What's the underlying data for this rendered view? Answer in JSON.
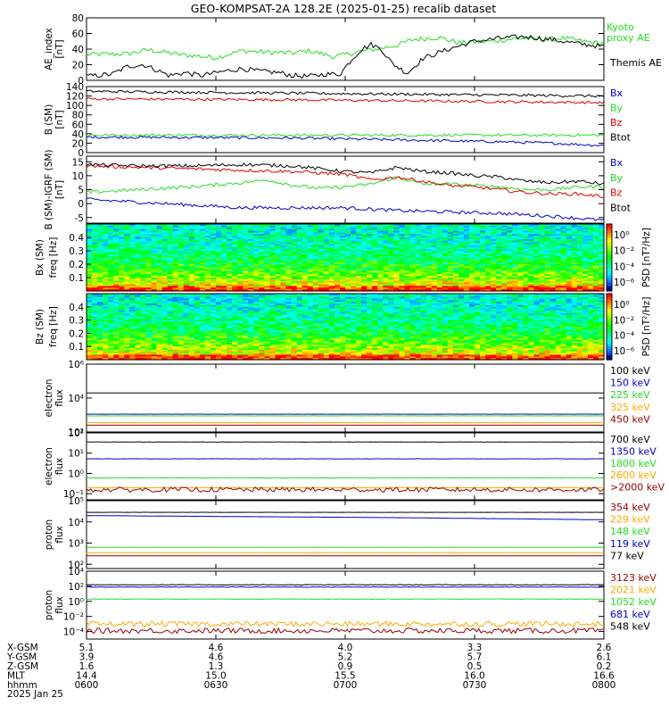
{
  "title": "GEO-KOMPSAT-2A 128.2E (2025-01-25) recalib dataset",
  "colors": {
    "black": "#000000",
    "red": "#e00000",
    "green": "#22dd22",
    "blue": "#0000c8",
    "orange": "#ffaa00",
    "maroon": "#990000"
  },
  "chart_data": [
    {
      "type": "line",
      "ylabel": [
        "AE_index",
        "[nT]"
      ],
      "ylim": [
        0,
        80
      ],
      "yticks": [
        "0",
        "20",
        "40",
        "60",
        "80"
      ],
      "series": [
        {
          "name": "Kyoto proxy AE",
          "color": "green",
          "x": [
            0,
            0.08,
            0.12,
            0.18,
            0.25,
            0.3,
            0.35,
            0.4,
            0.43,
            0.48,
            0.52,
            0.56,
            0.6,
            0.63,
            0.68,
            0.72,
            0.78,
            0.84,
            0.88,
            0.92,
            0.96,
            1.0
          ],
          "y": [
            33,
            34,
            39,
            33,
            29,
            38,
            36,
            35,
            38,
            30,
            36,
            40,
            45,
            52,
            55,
            48,
            50,
            54,
            52,
            54,
            50,
            47
          ]
        },
        {
          "name": "Themis AE",
          "color": "black",
          "x": [
            0,
            0.05,
            0.08,
            0.11,
            0.14,
            0.16,
            0.19,
            0.22,
            0.27,
            0.3,
            0.33,
            0.37,
            0.4,
            0.43,
            0.46,
            0.49,
            0.51,
            0.53,
            0.55,
            0.57,
            0.59,
            0.62,
            0.65,
            0.7,
            0.75,
            0.8,
            0.85,
            0.9,
            0.95,
            1.0
          ],
          "y": [
            5,
            8,
            18,
            20,
            12,
            6,
            10,
            6,
            12,
            15,
            12,
            10,
            6,
            5,
            8,
            8,
            25,
            39,
            46,
            40,
            22,
            9,
            28,
            40,
            50,
            54,
            56,
            52,
            47,
            43
          ]
        }
      ]
    },
    {
      "type": "line",
      "ylabel": [
        "B (SM)",
        "[nT]"
      ],
      "ylim": [
        0,
        140
      ],
      "yticks": [
        "0",
        "20",
        "40",
        "60",
        "80",
        "100",
        "120",
        "140"
      ],
      "series": [
        {
          "name": "Bx",
          "color": "blue",
          "x": [
            0,
            0.2,
            0.4,
            0.5,
            0.6,
            0.7,
            0.8,
            0.9,
            1.0
          ],
          "y": [
            33,
            32,
            31,
            29,
            27,
            25,
            23,
            20,
            15
          ]
        },
        {
          "name": "By",
          "color": "green",
          "x": [
            0,
            0.2,
            0.4,
            0.6,
            0.8,
            1.0
          ],
          "y": [
            37,
            37,
            37,
            37,
            37,
            37
          ]
        },
        {
          "name": "Bz",
          "color": "red",
          "x": [
            0,
            0.2,
            0.4,
            0.6,
            0.8,
            1.0
          ],
          "y": [
            114,
            113,
            112,
            110,
            108,
            106
          ]
        },
        {
          "name": "Btot",
          "color": "black",
          "x": [
            0,
            0.2,
            0.4,
            0.6,
            0.8,
            1.0
          ],
          "y": [
            130,
            128,
            126,
            124,
            122,
            120
          ]
        }
      ]
    },
    {
      "type": "line",
      "ylabel": [
        "B (SM)-IGRF (SM)",
        "[nT]"
      ],
      "ylim": [
        -7,
        17
      ],
      "yticks": [
        "-5",
        "0",
        "5",
        "10",
        "15"
      ],
      "series": [
        {
          "name": "Bx",
          "color": "blue",
          "x": [
            0,
            0.1,
            0.2,
            0.3,
            0.4,
            0.5,
            0.6,
            0.7,
            0.8,
            0.9,
            1.0
          ],
          "y": [
            1.5,
            0.5,
            -0.5,
            -1.5,
            -1.5,
            -1.5,
            -2.5,
            -3.0,
            -3.5,
            -4.5,
            -6.0
          ]
        },
        {
          "name": "By",
          "color": "green",
          "x": [
            0,
            0.1,
            0.2,
            0.3,
            0.35,
            0.4,
            0.45,
            0.5,
            0.55,
            0.6,
            0.65,
            0.7,
            0.75,
            0.8,
            0.85,
            0.9,
            0.95,
            1.0
          ],
          "y": [
            4.0,
            5.0,
            6.0,
            7.5,
            8.5,
            6.5,
            5.5,
            6.0,
            7.0,
            9.5,
            7.0,
            7.0,
            6.5,
            6.0,
            5.0,
            5.0,
            6.0,
            6.0
          ]
        },
        {
          "name": "Bz",
          "color": "red",
          "x": [
            0,
            0.1,
            0.2,
            0.3,
            0.4,
            0.5,
            0.55,
            0.6,
            0.65,
            0.7,
            0.75,
            0.8,
            0.85,
            0.9,
            0.95,
            1.0
          ],
          "y": [
            13.5,
            13.0,
            12.5,
            12.0,
            11.5,
            10.5,
            8.5,
            9.5,
            8.0,
            6.5,
            6.0,
            5.0,
            4.0,
            3.5,
            3.5,
            2.5
          ]
        },
        {
          "name": "Btot",
          "color": "black",
          "x": [
            0,
            0.1,
            0.2,
            0.3,
            0.4,
            0.5,
            0.55,
            0.6,
            0.65,
            0.7,
            0.75,
            0.8,
            0.85,
            0.9,
            0.95,
            1.0
          ],
          "y": [
            14.0,
            13.5,
            13.5,
            14.0,
            13.5,
            11.5,
            11.0,
            13.0,
            11.5,
            11.0,
            10.0,
            9.5,
            8.0,
            7.5,
            8.0,
            7.0
          ]
        }
      ]
    },
    {
      "type": "heatmap",
      "ylabel": [
        "Bx (SM)",
        "freq [Hz]"
      ],
      "ylim": [
        0.0,
        0.5
      ],
      "yticks": [
        "0.1",
        "0.2",
        "0.3",
        "0.4"
      ],
      "colorbar": {
        "label": "PSD [nT²/Hz]",
        "ticks": [
          "10⁰",
          "10⁻²",
          "10⁻⁴",
          "10⁻⁶"
        ],
        "range_exp": [
          -6,
          1
        ]
      }
    },
    {
      "type": "heatmap",
      "ylabel": [
        "Bz (SM)",
        "freq [Hz]"
      ],
      "ylim": [
        0.0,
        0.5
      ],
      "yticks": [
        "0.1",
        "0.2",
        "0.3",
        "0.4"
      ],
      "colorbar": {
        "label": "PSD [nT²/Hz]",
        "ticks": [
          "10⁰",
          "10⁻²",
          "10⁻⁴",
          "10⁻⁶"
        ],
        "range_exp": [
          -6,
          1
        ]
      }
    },
    {
      "type": "line",
      "ylabel": [
        "electron",
        "flux"
      ],
      "yscale": "log",
      "ylim_exp": [
        2,
        6
      ],
      "yticks": [
        "10²",
        "10⁴",
        "10⁶"
      ],
      "series": [
        {
          "name": "100 keV",
          "color": "black",
          "x": [
            0,
            1
          ],
          "y_exp": [
            4.3,
            4.3
          ]
        },
        {
          "name": "150 keV",
          "color": "blue",
          "x": [
            0,
            1
          ],
          "y_exp": [
            3.05,
            3.05
          ]
        },
        {
          "name": "225 keV",
          "color": "green",
          "x": [
            0,
            1
          ],
          "y_exp": [
            2.95,
            2.95
          ]
        },
        {
          "name": "325 keV",
          "color": "orange",
          "x": [
            0,
            1
          ],
          "y_exp": [
            2.55,
            2.55
          ]
        },
        {
          "name": "450 keV",
          "color": "maroon",
          "x": [
            0,
            1
          ],
          "y_exp": [
            2.4,
            2.4
          ]
        }
      ]
    },
    {
      "type": "line",
      "ylabel": [
        "electron",
        "flux"
      ],
      "yscale": "log",
      "ylim_exp": [
        -1.3,
        2
      ],
      "yticks": [
        "10²",
        "10¹",
        "10⁰",
        "10⁻¹"
      ],
      "series": [
        {
          "name": "700 keV",
          "color": "black",
          "x": [
            0,
            1
          ],
          "y_exp": [
            1.55,
            1.55
          ]
        },
        {
          "name": "1350 keV",
          "color": "blue",
          "x": [
            0,
            1
          ],
          "y_exp": [
            0.72,
            0.72
          ]
        },
        {
          "name": "1800 keV",
          "color": "green",
          "x": [
            0,
            1
          ],
          "y_exp": [
            -0.22,
            -0.22
          ]
        },
        {
          "name": "2600 keV",
          "color": "orange",
          "x": [
            0,
            1
          ],
          "y_exp": [
            -0.7,
            -0.7
          ]
        },
        {
          "name": ">2000 keV",
          "color": "maroon",
          "x": [
            0,
            1
          ],
          "y_exp": [
            -0.8,
            -0.8
          ]
        }
      ]
    },
    {
      "type": "line",
      "ylabel": [
        "proton",
        "flux"
      ],
      "yscale": "log",
      "ylim_exp": [
        1.8,
        5
      ],
      "yticks": [
        "10⁵",
        "10⁴",
        "10³",
        "10²"
      ],
      "series": [
        {
          "name": "354 keV",
          "color": "maroon",
          "x": [
            0,
            1
          ],
          "y_exp": [
            2.4,
            2.4
          ]
        },
        {
          "name": "229 keV",
          "color": "orange",
          "x": [
            0,
            1
          ],
          "y_exp": [
            2.55,
            2.55
          ]
        },
        {
          "name": "148 keV",
          "color": "green",
          "x": [
            0,
            1
          ],
          "y_exp": [
            2.8,
            2.8
          ]
        },
        {
          "name": "119 keV",
          "color": "blue",
          "x": [
            0,
            0.6,
            1
          ],
          "y_exp": [
            4.3,
            4.2,
            4.1
          ]
        },
        {
          "name": "77 keV",
          "color": "black",
          "x": [
            0,
            1
          ],
          "y_exp": [
            4.45,
            4.45
          ]
        }
      ]
    },
    {
      "type": "line",
      "ylabel": [
        "proton",
        "flux"
      ],
      "yscale": "log",
      "ylim_exp": [
        -5,
        4
      ],
      "yticks": [
        "10⁴",
        "10²",
        "10⁰",
        "10⁻²",
        "10⁻⁴"
      ],
      "series": [
        {
          "name": "3123 keV",
          "color": "maroon",
          "x": [
            0,
            1
          ],
          "y_exp": [
            -3.9,
            -3.9
          ]
        },
        {
          "name": "2021 keV",
          "color": "orange",
          "x": [
            0,
            1
          ],
          "y_exp": [
            -3.0,
            -3.0
          ]
        },
        {
          "name": "1052 keV",
          "color": "green",
          "x": [
            0,
            1
          ],
          "y_exp": [
            0.3,
            0.3
          ]
        },
        {
          "name": "681 keV",
          "color": "blue",
          "x": [
            0,
            1
          ],
          "y_exp": [
            1.9,
            1.9
          ]
        },
        {
          "name": "548 keV",
          "color": "black",
          "x": [
            0,
            1
          ],
          "y_exp": [
            2.2,
            2.2
          ]
        }
      ]
    }
  ],
  "orbit_table": {
    "row_labels": [
      "X-GSM",
      "Y-GSM",
      "Z-GSM",
      "MLT",
      "hhmm"
    ],
    "columns": [
      [
        "5.1",
        "3.9",
        "1.6",
        "14.4",
        "0600"
      ],
      [
        "4.6",
        "4.6",
        "1.3",
        "15.0",
        "0630"
      ],
      [
        "4.0",
        "5.2",
        "0.9",
        "15.5",
        "0700"
      ],
      [
        "3.3",
        "5.7",
        "0.5",
        "16.0",
        "0730"
      ],
      [
        "2.6",
        "6.1",
        "0.2",
        "16.6",
        "0800"
      ]
    ],
    "date": "2025 Jan 25"
  }
}
